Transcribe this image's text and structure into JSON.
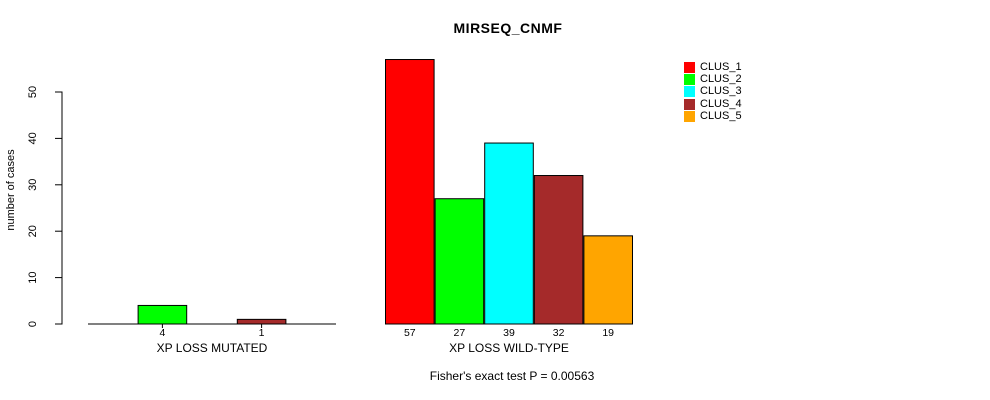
{
  "chart_data": {
    "type": "bar",
    "title": "MIRSEQ_CNMF",
    "ylabel": "number of cases",
    "xlabel": "",
    "ylim": [
      0,
      50
    ],
    "yticks": [
      0,
      10,
      20,
      30,
      40,
      50
    ],
    "grid": false,
    "legend_position": "right",
    "categories": [
      "XP LOSS MUTATED",
      "XP LOSS WILD-TYPE"
    ],
    "series": [
      {
        "name": "CLUS_1",
        "color": "#FF0000",
        "values": [
          0,
          57
        ]
      },
      {
        "name": "CLUS_2",
        "color": "#00FF00",
        "values": [
          4,
          27
        ]
      },
      {
        "name": "CLUS_3",
        "color": "#00FFFF",
        "values": [
          0,
          39
        ]
      },
      {
        "name": "CLUS_4",
        "color": "#A52A2A",
        "values": [
          1,
          32
        ]
      },
      {
        "name": "CLUS_5",
        "color": "#FFA500",
        "values": [
          0,
          19
        ]
      }
    ],
    "bar_value_labels": {
      "XP LOSS MUTATED": [
        "4",
        "1"
      ],
      "XP LOSS WILD-TYPE": [
        "57",
        "27",
        "39",
        "32",
        "19"
      ]
    },
    "annotation": "Fisher's exact test P = 0.00563",
    "axis_color": "#000000",
    "text_color": "#000000"
  }
}
